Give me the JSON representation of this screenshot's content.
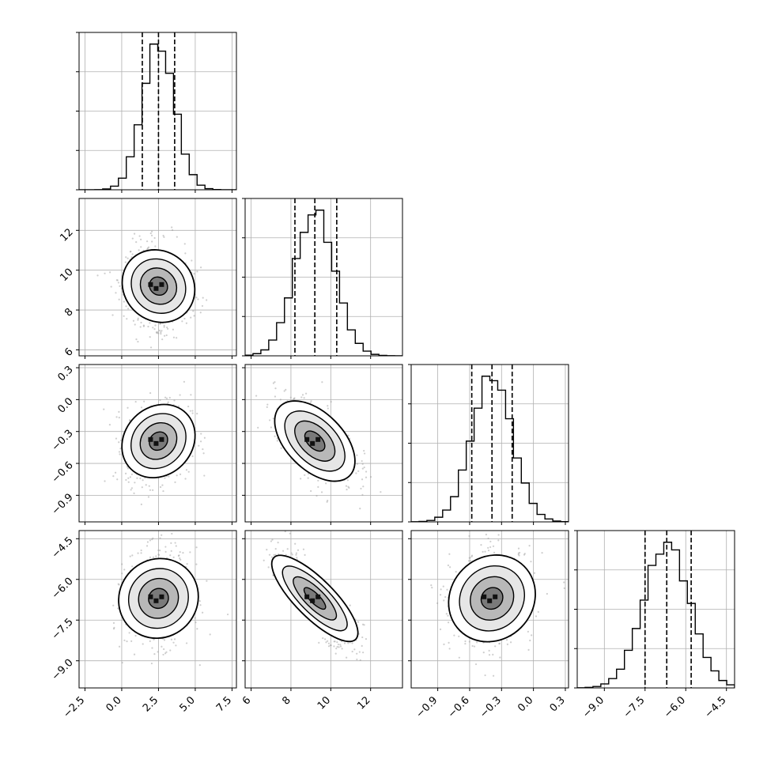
{
  "chart_data": {
    "type": "corner",
    "n_params": 4,
    "params": [
      {
        "range": [
          -2.9,
          7.8
        ],
        "ticks": [
          "-2.5",
          "0.0",
          "2.5",
          "5.0",
          "7.5"
        ],
        "tick_values": [
          -2.5,
          0.0,
          2.5,
          5.0,
          7.5
        ],
        "quantiles": [
          1.4,
          2.5,
          3.6
        ],
        "mean": 2.5,
        "sd": 1.1
      },
      {
        "range": [
          5.7,
          13.6
        ],
        "ticks": [
          "6",
          "8",
          "10",
          "12"
        ],
        "tick_values": [
          6,
          8,
          10,
          12
        ],
        "quantiles": [
          8.2,
          9.2,
          10.3
        ],
        "mean": 9.2,
        "sd": 1.0
      },
      {
        "range": [
          -1.15,
          0.33
        ],
        "ticks": [
          "-0.9",
          "-0.6",
          "-0.3",
          "0.0",
          "0.3"
        ],
        "tick_values": [
          -0.9,
          -0.6,
          -0.3,
          0.0,
          0.3
        ],
        "quantiles": [
          -0.58,
          -0.39,
          -0.2
        ],
        "mean": -0.39,
        "sd": 0.19
      },
      {
        "range": [
          -10.0,
          -4.2
        ],
        "ticks": [
          "-9.0",
          "-7.5",
          "-6.0",
          "-4.5"
        ],
        "tick_values": [
          -9.0,
          -7.5,
          -6.0,
          -4.5
        ],
        "quantiles": [
          -7.5,
          -6.7,
          -5.8
        ],
        "mean": -6.7,
        "sd": 0.85
      }
    ],
    "correlations": [
      {
        "pair": [
          0,
          1
        ],
        "rho": -0.1
      },
      {
        "pair": [
          0,
          2
        ],
        "rho": 0.15
      },
      {
        "pair": [
          1,
          2
        ],
        "rho": -0.5
      },
      {
        "pair": [
          0,
          3
        ],
        "rho": 0.05
      },
      {
        "pair": [
          1,
          3
        ],
        "rho": -0.8
      },
      {
        "pair": [
          2,
          3
        ],
        "rho": 0.1
      }
    ],
    "grid": true,
    "colors": {
      "hist": "#000000",
      "scatter": "#9e9e9e",
      "grid": "#b0b0b0",
      "density": "#000000"
    }
  }
}
